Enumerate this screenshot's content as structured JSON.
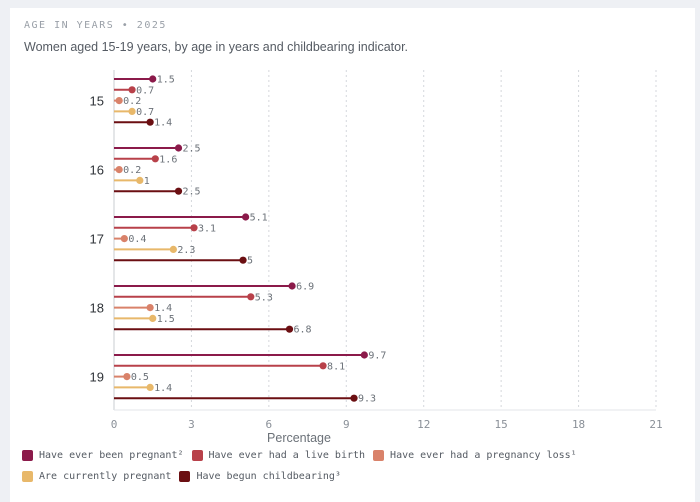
{
  "header": {
    "eyebrow": "AGE IN YEARS • 2025",
    "subtitle": "Women aged 15-19 years, by age in years and childbearing indicator."
  },
  "chart_data": {
    "type": "bar",
    "orientation": "horizontal",
    "style": "lollipop",
    "title": "",
    "xlabel": "Percentage",
    "ylabel": "",
    "xlim": [
      0,
      21
    ],
    "xticks": [
      0,
      3,
      6,
      9,
      12,
      15,
      18,
      21
    ],
    "grid": "vertical dashed",
    "legend_position": "bottom",
    "categories": [
      "15",
      "16",
      "17",
      "18",
      "19"
    ],
    "series": [
      {
        "name": "Have ever been pregnant²",
        "color": "#8b1a4a",
        "values": [
          1.5,
          2.5,
          5.1,
          6.9,
          9.7
        ]
      },
      {
        "name": "Have ever had a live birth",
        "color": "#b8414a",
        "values": [
          0.7,
          1.6,
          3.1,
          5.3,
          8.1
        ]
      },
      {
        "name": "Have ever had a pregnancy loss¹",
        "color": "#d9826a",
        "values": [
          0.2,
          0.2,
          0.4,
          1.4,
          0.5
        ]
      },
      {
        "name": "Are currently pregnant",
        "color": "#e8b86a",
        "values": [
          0.7,
          1,
          2.3,
          1.5,
          1.4
        ]
      },
      {
        "name": "Have begun childbearing³",
        "color": "#6b0f12",
        "values": [
          1.4,
          2.5,
          5,
          6.8,
          9.3
        ]
      }
    ]
  }
}
